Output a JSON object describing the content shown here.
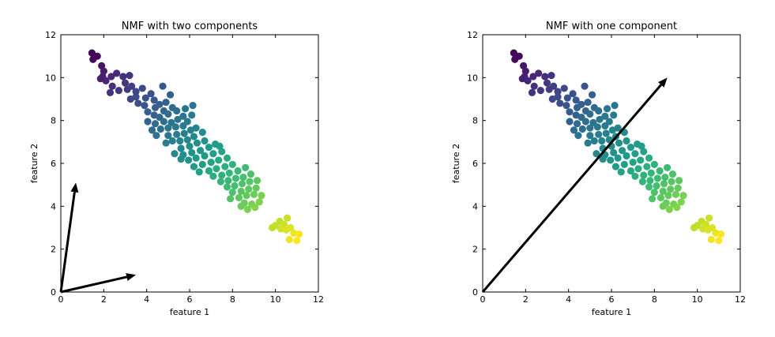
{
  "chart_data": [
    {
      "type": "scatter",
      "title": "NMF with two components",
      "xlabel": "feature 1",
      "ylabel": "feature 2",
      "xlim": [
        0,
        12
      ],
      "ylim": [
        0,
        12
      ],
      "xticks": [
        "0",
        "2",
        "4",
        "6",
        "8",
        "10",
        "12"
      ],
      "yticks": [
        "0",
        "2",
        "4",
        "6",
        "8",
        "10",
        "12"
      ],
      "colormap": "viridis",
      "colors": {
        "low": "#440154",
        "mid": "#21908d",
        "high": "#fde725"
      },
      "arrows": [
        {
          "x0": 0,
          "y0": 0,
          "x1": 0.7,
          "y1": 5.1
        },
        {
          "x0": 0,
          "y0": 0,
          "x1": 3.5,
          "y1": 0.8
        }
      ],
      "points": [
        [
          1.45,
          11.15
        ],
        [
          1.55,
          10.95
        ],
        [
          1.7,
          11.0
        ],
        [
          1.5,
          10.85
        ],
        [
          1.9,
          10.55
        ],
        [
          2.0,
          10.3
        ],
        [
          1.95,
          10.05
        ],
        [
          2.1,
          9.85
        ],
        [
          1.85,
          9.95
        ],
        [
          2.35,
          10.05
        ],
        [
          2.6,
          10.2
        ],
        [
          2.9,
          10.05
        ],
        [
          3.2,
          10.1
        ],
        [
          3.0,
          9.75
        ],
        [
          3.3,
          9.6
        ],
        [
          2.4,
          9.6
        ],
        [
          2.7,
          9.4
        ],
        [
          3.1,
          9.45
        ],
        [
          2.3,
          9.3
        ],
        [
          3.5,
          9.35
        ],
        [
          3.8,
          9.5
        ],
        [
          3.5,
          9.1
        ],
        [
          3.25,
          9.0
        ],
        [
          3.6,
          8.8
        ],
        [
          3.95,
          9.05
        ],
        [
          4.2,
          9.25
        ],
        [
          4.35,
          8.95
        ],
        [
          3.9,
          8.7
        ],
        [
          4.4,
          8.6
        ],
        [
          4.05,
          8.4
        ],
        [
          4.6,
          8.75
        ],
        [
          4.9,
          8.85
        ],
        [
          5.1,
          9.2
        ],
        [
          4.75,
          9.6
        ],
        [
          4.8,
          8.45
        ],
        [
          4.35,
          8.25
        ],
        [
          4.05,
          7.95
        ],
        [
          4.6,
          8.15
        ],
        [
          5.0,
          8.3
        ],
        [
          5.2,
          8.6
        ],
        [
          5.4,
          8.45
        ],
        [
          4.4,
          7.85
        ],
        [
          4.8,
          7.95
        ],
        [
          5.15,
          7.9
        ],
        [
          5.45,
          8.05
        ],
        [
          5.7,
          8.2
        ],
        [
          5.8,
          8.55
        ],
        [
          4.65,
          7.6
        ],
        [
          5.0,
          7.65
        ],
        [
          5.35,
          7.7
        ],
        [
          5.7,
          7.75
        ],
        [
          5.9,
          7.95
        ],
        [
          6.1,
          8.25
        ],
        [
          4.45,
          7.3
        ],
        [
          5.0,
          7.3
        ],
        [
          5.4,
          7.35
        ],
        [
          5.75,
          7.4
        ],
        [
          6.05,
          7.55
        ],
        [
          6.3,
          7.65
        ],
        [
          5.2,
          7.05
        ],
        [
          5.55,
          7.05
        ],
        [
          5.9,
          7.1
        ],
        [
          6.2,
          7.25
        ],
        [
          6.6,
          7.45
        ],
        [
          4.9,
          6.95
        ],
        [
          5.6,
          6.7
        ],
        [
          6.0,
          6.8
        ],
        [
          6.35,
          6.95
        ],
        [
          6.7,
          7.05
        ],
        [
          5.3,
          6.45
        ],
        [
          5.7,
          6.4
        ],
        [
          6.1,
          6.5
        ],
        [
          6.5,
          6.6
        ],
        [
          6.9,
          6.75
        ],
        [
          7.2,
          6.9
        ],
        [
          5.95,
          6.15
        ],
        [
          6.3,
          6.25
        ],
        [
          6.7,
          6.35
        ],
        [
          7.1,
          6.45
        ],
        [
          7.5,
          6.55
        ],
        [
          6.2,
          5.85
        ],
        [
          6.6,
          5.95
        ],
        [
          7.0,
          6.05
        ],
        [
          7.35,
          6.15
        ],
        [
          7.75,
          6.25
        ],
        [
          6.45,
          5.6
        ],
        [
          6.9,
          5.65
        ],
        [
          7.25,
          5.75
        ],
        [
          7.65,
          5.85
        ],
        [
          8.0,
          5.95
        ],
        [
          7.1,
          5.4
        ],
        [
          7.5,
          5.45
        ],
        [
          7.85,
          5.55
        ],
        [
          8.25,
          5.65
        ],
        [
          8.6,
          5.8
        ],
        [
          7.45,
          5.15
        ],
        [
          7.8,
          5.2
        ],
        [
          8.15,
          5.3
        ],
        [
          8.5,
          5.35
        ],
        [
          8.85,
          5.5
        ],
        [
          7.75,
          4.9
        ],
        [
          8.1,
          4.95
        ],
        [
          8.45,
          5.05
        ],
        [
          8.8,
          5.15
        ],
        [
          9.15,
          5.2
        ],
        [
          8.0,
          4.65
        ],
        [
          8.4,
          4.7
        ],
        [
          8.75,
          4.8
        ],
        [
          9.1,
          4.85
        ],
        [
          7.9,
          4.35
        ],
        [
          8.3,
          4.4
        ],
        [
          8.65,
          4.5
        ],
        [
          9.0,
          4.55
        ],
        [
          9.35,
          4.5
        ],
        [
          8.55,
          4.15
        ],
        [
          8.9,
          4.1
        ],
        [
          9.25,
          4.2
        ],
        [
          8.7,
          3.85
        ],
        [
          9.05,
          3.95
        ],
        [
          8.4,
          4.0
        ],
        [
          10.0,
          3.1
        ],
        [
          10.2,
          3.3
        ],
        [
          10.4,
          3.15
        ],
        [
          10.55,
          3.45
        ],
        [
          10.25,
          2.95
        ],
        [
          10.7,
          3.0
        ],
        [
          10.85,
          2.75
        ],
        [
          10.65,
          2.45
        ],
        [
          11.0,
          2.4
        ],
        [
          11.1,
          2.7
        ],
        [
          9.85,
          3.0
        ],
        [
          10.5,
          2.9
        ],
        [
          6.15,
          8.7
        ],
        [
          4.25,
          7.55
        ],
        [
          5.6,
          6.2
        ],
        [
          7.4,
          6.8
        ]
      ]
    },
    {
      "type": "scatter",
      "title": "NMF with one component",
      "xlabel": "feature 1",
      "ylabel": "feature 2",
      "xlim": [
        0,
        12
      ],
      "ylim": [
        0,
        12
      ],
      "xticks": [
        "0",
        "2",
        "4",
        "6",
        "8",
        "10",
        "12"
      ],
      "yticks": [
        "0",
        "2",
        "4",
        "6",
        "8",
        "10",
        "12"
      ],
      "colormap": "viridis",
      "colors": {
        "low": "#440154",
        "mid": "#21908d",
        "high": "#fde725"
      },
      "arrows": [
        {
          "x0": 0,
          "y0": 0,
          "x1": 8.6,
          "y1": 10.0
        }
      ],
      "points": [
        [
          1.45,
          11.15
        ],
        [
          1.55,
          10.95
        ],
        [
          1.7,
          11.0
        ],
        [
          1.5,
          10.85
        ],
        [
          1.9,
          10.55
        ],
        [
          2.0,
          10.3
        ],
        [
          1.95,
          10.05
        ],
        [
          2.1,
          9.85
        ],
        [
          1.85,
          9.95
        ],
        [
          2.35,
          10.05
        ],
        [
          2.6,
          10.2
        ],
        [
          2.9,
          10.05
        ],
        [
          3.2,
          10.1
        ],
        [
          3.0,
          9.75
        ],
        [
          3.3,
          9.6
        ],
        [
          2.4,
          9.6
        ],
        [
          2.7,
          9.4
        ],
        [
          3.1,
          9.45
        ],
        [
          2.3,
          9.3
        ],
        [
          3.5,
          9.35
        ],
        [
          3.8,
          9.5
        ],
        [
          3.5,
          9.1
        ],
        [
          3.25,
          9.0
        ],
        [
          3.6,
          8.8
        ],
        [
          3.95,
          9.05
        ],
        [
          4.2,
          9.25
        ],
        [
          4.35,
          8.95
        ],
        [
          3.9,
          8.7
        ],
        [
          4.4,
          8.6
        ],
        [
          4.05,
          8.4
        ],
        [
          4.6,
          8.75
        ],
        [
          4.9,
          8.85
        ],
        [
          5.1,
          9.2
        ],
        [
          4.75,
          9.6
        ],
        [
          4.8,
          8.45
        ],
        [
          4.35,
          8.25
        ],
        [
          4.05,
          7.95
        ],
        [
          4.6,
          8.15
        ],
        [
          5.0,
          8.3
        ],
        [
          5.2,
          8.6
        ],
        [
          5.4,
          8.45
        ],
        [
          4.4,
          7.85
        ],
        [
          4.8,
          7.95
        ],
        [
          5.15,
          7.9
        ],
        [
          5.45,
          8.05
        ],
        [
          5.7,
          8.2
        ],
        [
          5.8,
          8.55
        ],
        [
          4.65,
          7.6
        ],
        [
          5.0,
          7.65
        ],
        [
          5.35,
          7.7
        ],
        [
          5.7,
          7.75
        ],
        [
          5.9,
          7.95
        ],
        [
          6.1,
          8.25
        ],
        [
          4.45,
          7.3
        ],
        [
          5.0,
          7.3
        ],
        [
          5.4,
          7.35
        ],
        [
          5.75,
          7.4
        ],
        [
          6.05,
          7.55
        ],
        [
          6.3,
          7.65
        ],
        [
          5.2,
          7.05
        ],
        [
          5.55,
          7.05
        ],
        [
          5.9,
          7.1
        ],
        [
          6.2,
          7.25
        ],
        [
          6.6,
          7.45
        ],
        [
          4.9,
          6.95
        ],
        [
          5.6,
          6.7
        ],
        [
          6.0,
          6.8
        ],
        [
          6.35,
          6.95
        ],
        [
          6.7,
          7.05
        ],
        [
          5.3,
          6.45
        ],
        [
          5.7,
          6.4
        ],
        [
          6.1,
          6.5
        ],
        [
          6.5,
          6.6
        ],
        [
          6.9,
          6.75
        ],
        [
          7.2,
          6.9
        ],
        [
          5.95,
          6.15
        ],
        [
          6.3,
          6.25
        ],
        [
          6.7,
          6.35
        ],
        [
          7.1,
          6.45
        ],
        [
          7.5,
          6.55
        ],
        [
          6.2,
          5.85
        ],
        [
          6.6,
          5.95
        ],
        [
          7.0,
          6.05
        ],
        [
          7.35,
          6.15
        ],
        [
          7.75,
          6.25
        ],
        [
          6.45,
          5.6
        ],
        [
          6.9,
          5.65
        ],
        [
          7.25,
          5.75
        ],
        [
          7.65,
          5.85
        ],
        [
          8.0,
          5.95
        ],
        [
          7.1,
          5.4
        ],
        [
          7.5,
          5.45
        ],
        [
          7.85,
          5.55
        ],
        [
          8.25,
          5.65
        ],
        [
          8.6,
          5.8
        ],
        [
          7.45,
          5.15
        ],
        [
          7.8,
          5.2
        ],
        [
          8.15,
          5.3
        ],
        [
          8.5,
          5.35
        ],
        [
          8.85,
          5.5
        ],
        [
          7.75,
          4.9
        ],
        [
          8.1,
          4.95
        ],
        [
          8.45,
          5.05
        ],
        [
          8.8,
          5.15
        ],
        [
          9.15,
          5.2
        ],
        [
          8.0,
          4.65
        ],
        [
          8.4,
          4.7
        ],
        [
          8.75,
          4.8
        ],
        [
          9.1,
          4.85
        ],
        [
          7.9,
          4.35
        ],
        [
          8.3,
          4.4
        ],
        [
          8.65,
          4.5
        ],
        [
          9.0,
          4.55
        ],
        [
          9.35,
          4.5
        ],
        [
          8.55,
          4.15
        ],
        [
          8.9,
          4.1
        ],
        [
          9.25,
          4.2
        ],
        [
          8.7,
          3.85
        ],
        [
          9.05,
          3.95
        ],
        [
          8.4,
          4.0
        ],
        [
          10.0,
          3.1
        ],
        [
          10.2,
          3.3
        ],
        [
          10.4,
          3.15
        ],
        [
          10.55,
          3.45
        ],
        [
          10.25,
          2.95
        ],
        [
          10.7,
          3.0
        ],
        [
          10.85,
          2.75
        ],
        [
          10.65,
          2.45
        ],
        [
          11.0,
          2.4
        ],
        [
          11.1,
          2.7
        ],
        [
          9.85,
          3.0
        ],
        [
          10.5,
          2.9
        ],
        [
          6.15,
          8.7
        ],
        [
          4.25,
          7.55
        ],
        [
          5.6,
          6.2
        ],
        [
          7.4,
          6.8
        ]
      ]
    }
  ]
}
